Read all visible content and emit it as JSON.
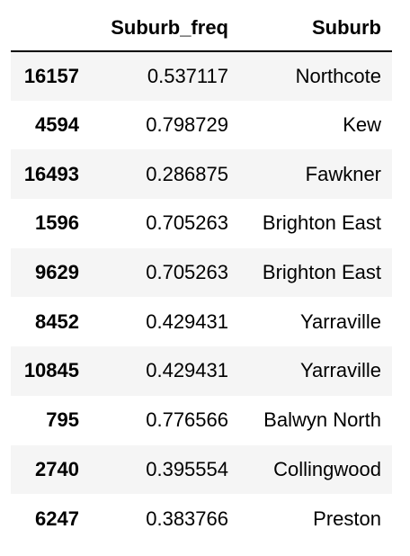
{
  "table": {
    "columns": [
      "",
      "Suburb_freq",
      "Suburb"
    ],
    "rows": [
      {
        "index": "16157",
        "suburb_freq": "0.537117",
        "suburb": "Northcote"
      },
      {
        "index": "4594",
        "suburb_freq": "0.798729",
        "suburb": "Kew"
      },
      {
        "index": "16493",
        "suburb_freq": "0.286875",
        "suburb": "Fawkner"
      },
      {
        "index": "1596",
        "suburb_freq": "0.705263",
        "suburb": "Brighton East"
      },
      {
        "index": "9629",
        "suburb_freq": "0.705263",
        "suburb": "Brighton East"
      },
      {
        "index": "8452",
        "suburb_freq": "0.429431",
        "suburb": "Yarraville"
      },
      {
        "index": "10845",
        "suburb_freq": "0.429431",
        "suburb": "Yarraville"
      },
      {
        "index": "795",
        "suburb_freq": "0.776566",
        "suburb": "Balwyn North"
      },
      {
        "index": "2740",
        "suburb_freq": "0.395554",
        "suburb": "Collingwood"
      },
      {
        "index": "6247",
        "suburb_freq": "0.383766",
        "suburb": "Preston"
      }
    ]
  },
  "colors": {
    "stripe": "#f5f5f5",
    "header_rule": "#000000",
    "text": "#000000"
  }
}
